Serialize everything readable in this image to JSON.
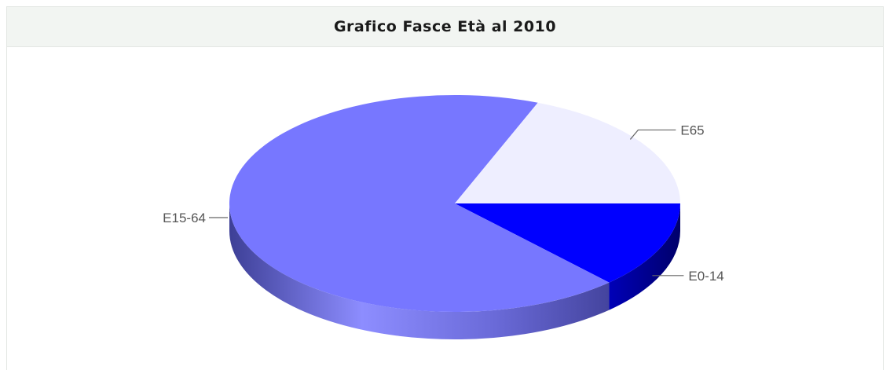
{
  "header": {
    "title": "Grafico Fasce Età al 2010"
  },
  "chart_data": {
    "type": "pie",
    "title": "Grafico Fasce Età al 2010",
    "three_d": true,
    "slices": [
      {
        "label": "E0-14",
        "value": 13,
        "color": "#0000ff"
      },
      {
        "label": "E15-64",
        "value": 68,
        "color": "#7777ff"
      },
      {
        "label": "E65",
        "value": 19,
        "color": "#eeeeff"
      }
    ]
  }
}
